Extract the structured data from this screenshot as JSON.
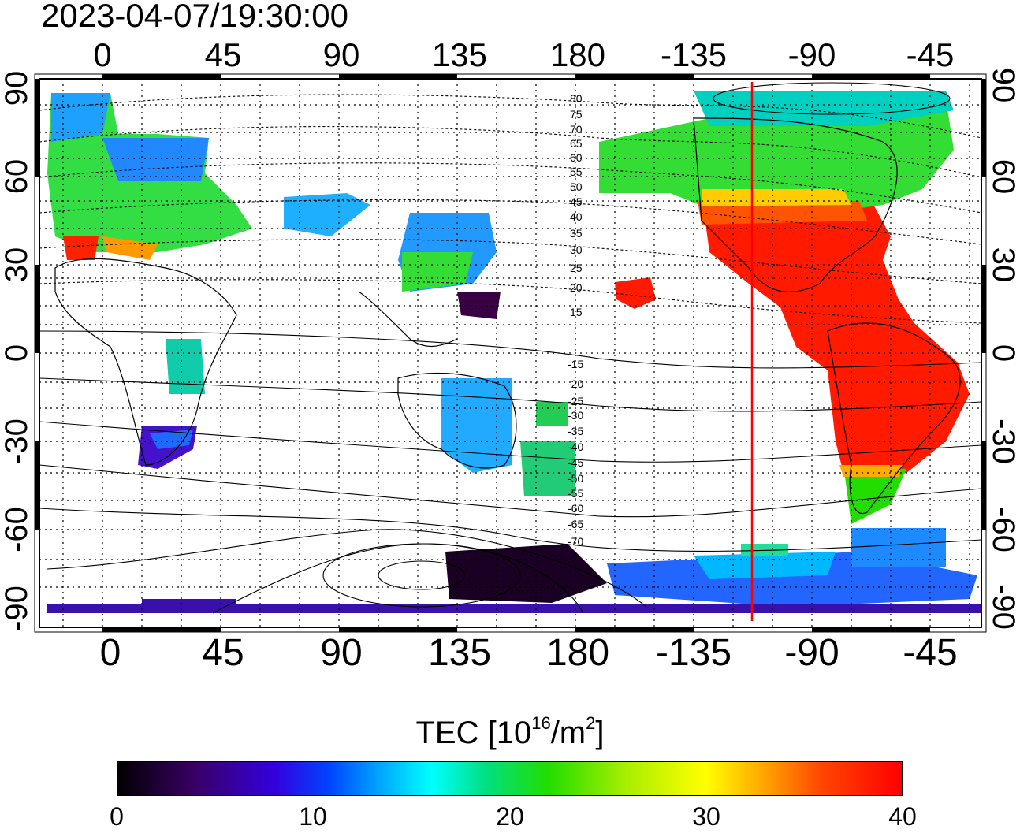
{
  "title": "2023-04-07/19:30:00",
  "map": {
    "top_lon_labels": [
      "0",
      "45",
      "90",
      "135",
      "180",
      "-135",
      "-90",
      "-45"
    ],
    "bottom_lon_labels": [
      "0",
      "45",
      "90",
      "135",
      "180",
      "-135",
      "-90",
      "-45"
    ],
    "left_lat_labels": [
      "90",
      "60",
      "30",
      "0",
      "-30",
      "-60",
      "-90"
    ],
    "right_lat_labels": [
      "90",
      "60",
      "30",
      "0",
      "-30",
      "-60",
      "-90"
    ],
    "contour_labels_north": [
      "80",
      "75",
      "70",
      "65",
      "60",
      "55",
      "50",
      "45",
      "40",
      "35",
      "30",
      "25",
      "20",
      "15"
    ],
    "contour_labels_south": [
      "-15",
      "-20",
      "-25",
      "-30",
      "-35",
      "-40",
      "-45",
      "-50",
      "-55",
      "-60",
      "-65",
      "-70"
    ],
    "meridian_marker_color": "#ff0000",
    "meridian_marker_lon": -115
  },
  "colorbar": {
    "title_prefix": "TEC  [10",
    "title_sup1": "16",
    "title_mid": "/m",
    "title_sup2": "2",
    "title_suffix": "]",
    "ticks": [
      "0",
      "10",
      "20",
      "30",
      "40"
    ],
    "range": [
      0,
      40
    ]
  }
}
